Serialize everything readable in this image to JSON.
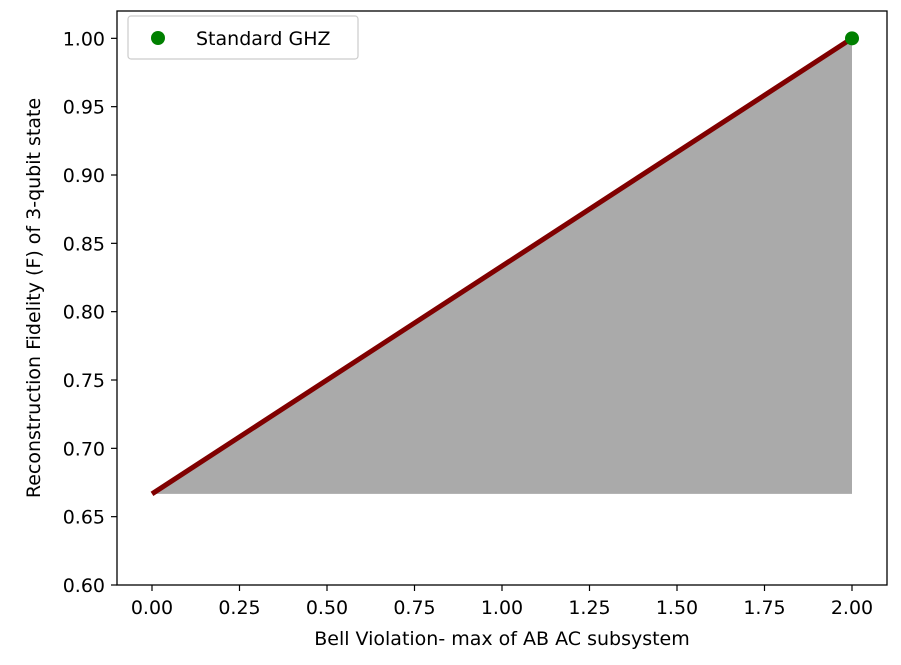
{
  "chart_data": {
    "type": "line",
    "title": "",
    "xlabel": "Bell Violation- max of AB AC subsystem",
    "ylabel": "Reconstruction Fidelity (F) of 3-qubit state",
    "xlim": [
      -0.1,
      2.1
    ],
    "ylim": [
      0.6,
      1.02
    ],
    "xticks": [
      0.0,
      0.25,
      0.5,
      0.75,
      1.0,
      1.25,
      1.5,
      1.75,
      2.0
    ],
    "xtick_labels": [
      "0.00",
      "0.25",
      "0.50",
      "0.75",
      "1.00",
      "1.25",
      "1.50",
      "1.75",
      "2.00"
    ],
    "yticks": [
      0.6,
      0.65,
      0.7,
      0.75,
      0.8,
      0.85,
      0.9,
      0.95,
      1.0
    ],
    "ytick_labels": [
      "0.60",
      "0.65",
      "0.70",
      "0.75",
      "0.80",
      "0.85",
      "0.90",
      "0.95",
      "1.00"
    ],
    "grid": false,
    "legend_position": "top-left",
    "series": [
      {
        "kind": "line",
        "x": [
          0.0,
          2.0
        ],
        "y": [
          0.6667,
          1.0
        ],
        "color": "#800000"
      },
      {
        "kind": "area",
        "x": [
          0.0,
          2.0
        ],
        "y_upper": [
          0.6667,
          1.0
        ],
        "y_lower": [
          0.6667,
          0.6667
        ],
        "color": "#aaaaaa"
      },
      {
        "kind": "scatter",
        "name": "Standard GHZ",
        "x": [
          2.0
        ],
        "y": [
          1.0
        ],
        "color": "#008000"
      }
    ]
  }
}
